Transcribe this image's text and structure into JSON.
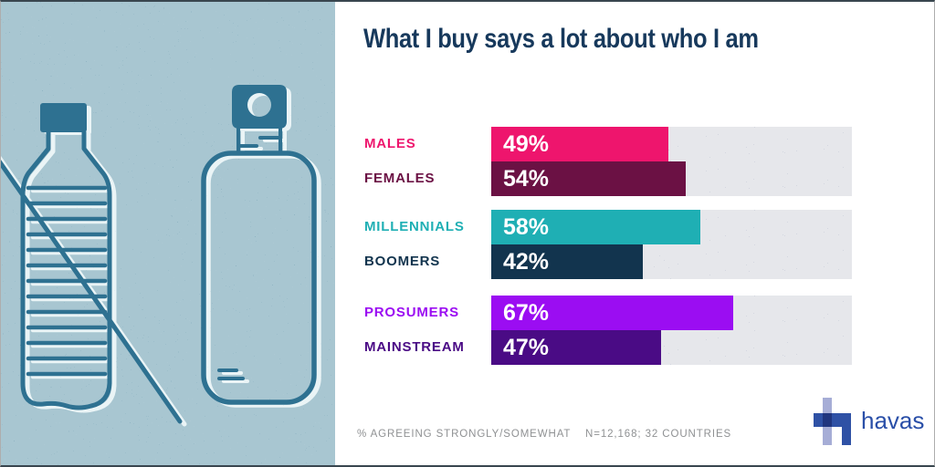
{
  "title": "What I buy says a lot about who I am",
  "left_panel": {
    "icons": [
      "disposable-bottle-crossed-out-icon",
      "reusable-bottle-icon"
    ]
  },
  "chart_data": {
    "type": "bar",
    "orientation": "horizontal",
    "title": "What I buy says a lot about who I am",
    "unit": "%",
    "xlabel": "",
    "ylabel": "",
    "xlim": [
      0,
      100
    ],
    "grid": false,
    "note": "% AGREEING STRONGLY/SOMEWHAT",
    "sample": "N=12,168; 32 COUNTRIES",
    "groups": [
      {
        "rows": [
          {
            "label": "MALES",
            "value": 49,
            "color": "#EE156D"
          },
          {
            "label": "FEMALES",
            "value": 54,
            "color": "#6B1144"
          }
        ]
      },
      {
        "rows": [
          {
            "label": "MILLENNIALS",
            "value": 58,
            "color": "#1FAFB4"
          },
          {
            "label": "BOOMERS",
            "value": 42,
            "color": "#12344E"
          }
        ]
      },
      {
        "rows": [
          {
            "label": "PROSUMERS",
            "value": 67,
            "color": "#9B0DF2"
          },
          {
            "label": "MAINSTREAM",
            "value": 47,
            "color": "#4A0B85"
          }
        ]
      }
    ]
  },
  "logo": {
    "text": "havas"
  },
  "colors": {
    "title_text": "#17395C",
    "footer_text": "#8F9193",
    "value_text": "#FFFFFF",
    "track_base": "#E6E7EB",
    "track_dot": "#68759B",
    "panel_bg": "#A8C6D1",
    "panel_dot_dark": "#2F6E8C",
    "panel_dot_light": "#FFFFFF",
    "bottle_ink": "#2E7191",
    "bottle_highlight": "#EAF4F6",
    "logo_blue": "#2F51A5",
    "logo_lavender": "#A6ADD6",
    "logo_overlap": "#20357E",
    "logo_text": "#2A4FA8",
    "border_dark": "#39464F",
    "border_light": "#ADADAD"
  }
}
